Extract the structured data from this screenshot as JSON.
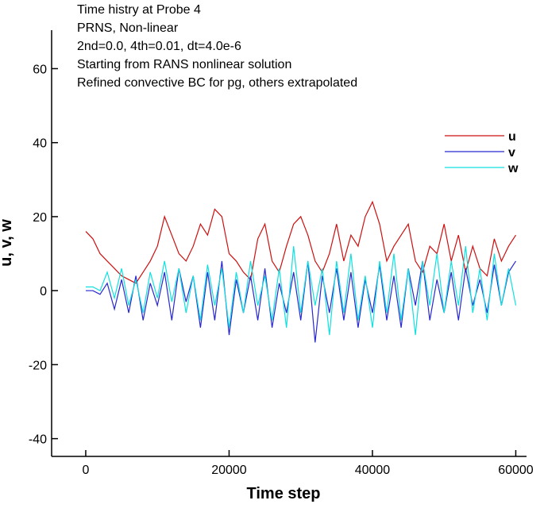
{
  "chart_data": {
    "type": "line",
    "annotations": [
      "Time histry at Probe 4",
      "PRNS,  Non-linear",
      "2nd=0.0, 4th=0.01, dt=4.0e-6",
      "Starting from RANS nonlinear solution",
      "Refined convective BC for pg, others extrapolated"
    ],
    "x_label": "Time step",
    "y_label": "u, v, w",
    "x": [
      0,
      1000,
      2000,
      3000,
      4000,
      5000,
      6000,
      7000,
      8000,
      9000,
      10000,
      11000,
      12000,
      13000,
      14000,
      15000,
      16000,
      17000,
      18000,
      19000,
      20000,
      21000,
      22000,
      23000,
      24000,
      25000,
      26000,
      27000,
      28000,
      29000,
      30000,
      31000,
      32000,
      33000,
      34000,
      35000,
      36000,
      37000,
      38000,
      39000,
      40000,
      41000,
      42000,
      43000,
      44000,
      45000,
      46000,
      47000,
      48000,
      49000,
      50000,
      51000,
      52000,
      53000,
      54000,
      55000,
      56000,
      57000,
      58000,
      59000,
      60000
    ],
    "series": [
      {
        "name": "u",
        "color": "#cc1010",
        "values": [
          16,
          14,
          10,
          8,
          6,
          4,
          3,
          2,
          5,
          8,
          12,
          20,
          15,
          10,
          8,
          12,
          18,
          15,
          22,
          20,
          10,
          8,
          5,
          3,
          14,
          18,
          8,
          5,
          12,
          18,
          20,
          15,
          8,
          5,
          10,
          18,
          8,
          15,
          12,
          20,
          24,
          18,
          8,
          12,
          15,
          18,
          8,
          5,
          12,
          10,
          18,
          8,
          15,
          5,
          12,
          6,
          4,
          14,
          8,
          12,
          15
        ]
      },
      {
        "name": "v",
        "color": "#2828d0",
        "values": [
          0,
          0,
          -1,
          2,
          -5,
          3,
          -6,
          4,
          -8,
          2,
          -4,
          5,
          -8,
          6,
          -3,
          4,
          -10,
          5,
          -8,
          8,
          -12,
          3,
          -6,
          4,
          -8,
          6,
          -10,
          2,
          -6,
          5,
          -8,
          8,
          -14,
          4,
          -6,
          6,
          -8,
          5,
          -10,
          3,
          -6,
          7,
          -8,
          4,
          -10,
          6,
          -4,
          8,
          -8,
          3,
          -6,
          5,
          -8,
          6,
          -4,
          3,
          -6,
          7,
          -4,
          5,
          8
        ]
      },
      {
        "name": "w",
        "color": "#10e0e0",
        "values": [
          1,
          1,
          0,
          5,
          -2,
          6,
          -4,
          3,
          -6,
          5,
          -2,
          8,
          -3,
          6,
          -6,
          4,
          -8,
          7,
          -4,
          6,
          -10,
          5,
          -6,
          8,
          -4,
          4,
          -8,
          6,
          -10,
          12,
          -6,
          8,
          -4,
          6,
          -12,
          8,
          -6,
          10,
          -8,
          4,
          -10,
          8,
          -6,
          10,
          -8,
          6,
          -12,
          8,
          -4,
          10,
          -6,
          8,
          -4,
          12,
          -6,
          6,
          -8,
          10,
          -4,
          6,
          -4
        ]
      }
    ],
    "xlim": [
      -4760,
      61500
    ],
    "ylim": [
      -44.8,
      70.4
    ],
    "xticks": [
      0,
      20000,
      40000,
      60000
    ],
    "yticks": [
      -40,
      -20,
      0,
      20,
      40,
      60
    ]
  }
}
